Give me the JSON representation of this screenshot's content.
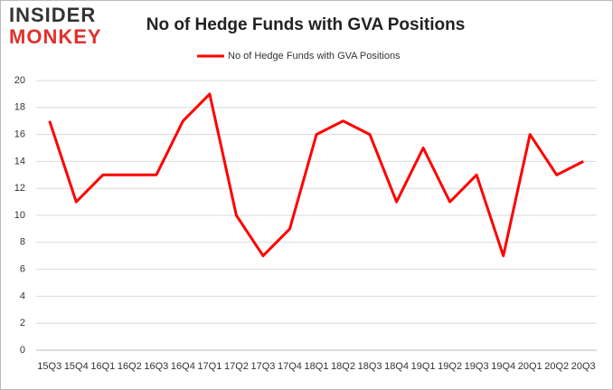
{
  "logo": {
    "line1": "INSIDER",
    "line2": "MONKEY"
  },
  "chart_data": {
    "type": "line",
    "title": "No of Hedge Funds with GVA Positions",
    "categories": [
      "15Q3",
      "15Q4",
      "16Q1",
      "16Q2",
      "16Q3",
      "16Q4",
      "17Q1",
      "17Q2",
      "17Q3",
      "17Q4",
      "18Q1",
      "18Q2",
      "18Q3",
      "18Q4",
      "19Q1",
      "19Q2",
      "19Q3",
      "19Q4",
      "20Q1",
      "20Q2",
      "20Q3"
    ],
    "series": [
      {
        "name": "No of Hedge Funds with GVA Positions",
        "color": "#ff0000",
        "values": [
          17,
          11,
          13,
          13,
          13,
          17,
          19,
          10,
          7,
          9,
          16,
          17,
          16,
          11,
          15,
          11,
          13,
          7,
          16,
          13,
          14
        ]
      }
    ],
    "ylim": [
      0,
      20
    ],
    "yticks": [
      0,
      2,
      4,
      6,
      8,
      10,
      12,
      14,
      16,
      18,
      20
    ],
    "grid": true,
    "legend": "top"
  }
}
